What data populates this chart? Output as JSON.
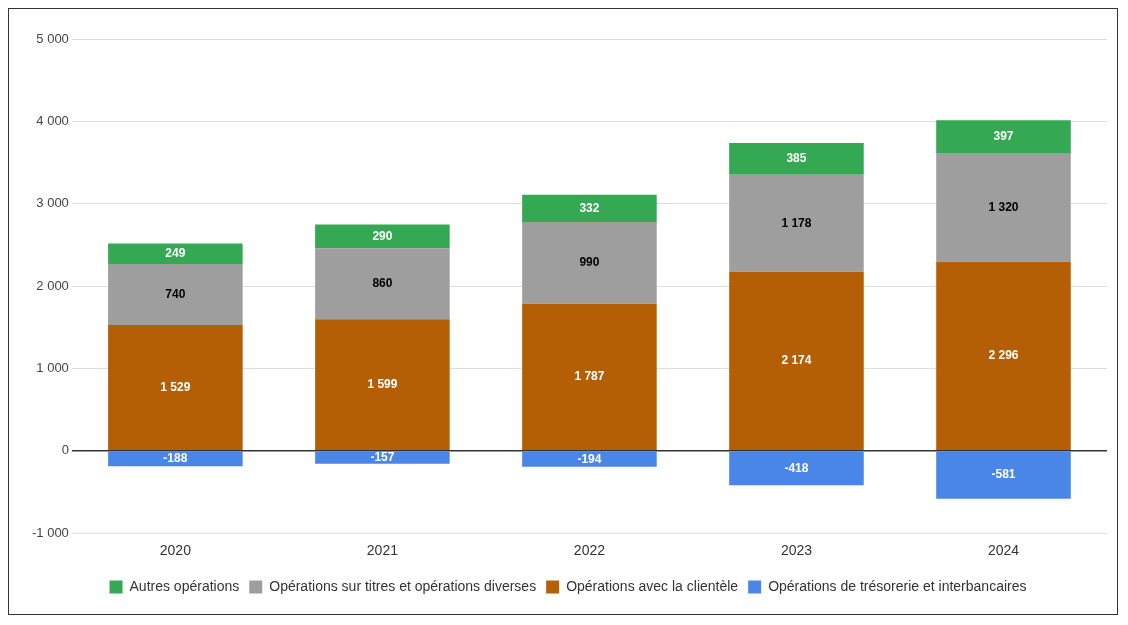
{
  "chart_data": {
    "type": "bar",
    "stacked": true,
    "categories": [
      "2020",
      "2021",
      "2022",
      "2023",
      "2024"
    ],
    "series": [
      {
        "name": "Opérations de trésorerie et interbancaires",
        "color": "#4a86e8",
        "values": [
          -188,
          -157,
          -194,
          -418,
          -581
        ],
        "value_labels": [
          "-188",
          "-157",
          "-194",
          "-418",
          "-581"
        ]
      },
      {
        "name": "Opérations avec la clientèle",
        "color": "#b45f06",
        "values": [
          1529,
          1599,
          1787,
          2174,
          2296
        ],
        "value_labels": [
          "1 529",
          "1 599",
          "1 787",
          "2 174",
          "2 296"
        ]
      },
      {
        "name": "Opérations sur titres et opérations diverses",
        "color": "#9e9e9e",
        "values": [
          740,
          860,
          990,
          1178,
          1320
        ],
        "value_labels": [
          "740",
          "860",
          "990",
          "1 178",
          "1 320"
        ]
      },
      {
        "name": "Autres opérations",
        "color": "#34a853",
        "values": [
          249,
          290,
          332,
          385,
          397
        ],
        "value_labels": [
          "249",
          "290",
          "332",
          "385",
          "397"
        ]
      }
    ],
    "ylim": [
      -1000,
      5000
    ],
    "yticks": [
      {
        "value": -1000,
        "label": "-1 000"
      },
      0,
      {
        "value": 1000,
        "label": "1 000"
      },
      {
        "value": 2000,
        "label": "2 000"
      },
      {
        "value": 3000,
        "label": "3 000"
      },
      {
        "value": 4000,
        "label": "4 000"
      },
      {
        "value": 5000,
        "label": "5 000"
      }
    ],
    "grid": "y",
    "legend": "bottom"
  }
}
